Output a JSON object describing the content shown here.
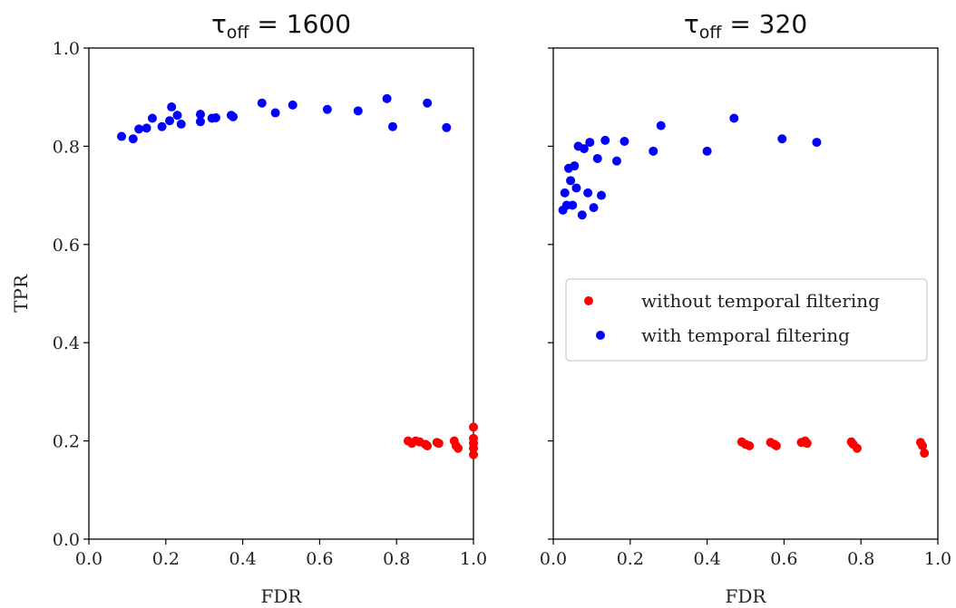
{
  "chart_data": [
    {
      "type": "scatter",
      "title": {
        "symbol": "τ",
        "subscript": "off",
        "suffix": " = 1600"
      },
      "xlabel": "FDR",
      "ylabel": "TPR",
      "xlim": [
        0.0,
        1.0
      ],
      "ylim": [
        0.0,
        1.0
      ],
      "xticks": [
        "0.0",
        "0.2",
        "0.4",
        "0.6",
        "0.8",
        "1.0"
      ],
      "yticks": [
        "0.0",
        "0.2",
        "0.4",
        "0.6",
        "0.8",
        "1.0"
      ],
      "series": [
        {
          "name": "with temporal filtering",
          "color": "#0000ff",
          "points": [
            [
              0.085,
              0.82
            ],
            [
              0.115,
              0.815
            ],
            [
              0.13,
              0.835
            ],
            [
              0.15,
              0.837
            ],
            [
              0.165,
              0.857
            ],
            [
              0.19,
              0.84
            ],
            [
              0.21,
              0.852
            ],
            [
              0.215,
              0.88
            ],
            [
              0.23,
              0.863
            ],
            [
              0.24,
              0.845
            ],
            [
              0.29,
              0.865
            ],
            [
              0.29,
              0.85
            ],
            [
              0.32,
              0.857
            ],
            [
              0.33,
              0.858
            ],
            [
              0.37,
              0.863
            ],
            [
              0.375,
              0.86
            ],
            [
              0.45,
              0.888
            ],
            [
              0.485,
              0.868
            ],
            [
              0.53,
              0.884
            ],
            [
              0.62,
              0.875
            ],
            [
              0.7,
              0.872
            ],
            [
              0.775,
              0.897
            ],
            [
              0.79,
              0.84
            ],
            [
              0.88,
              0.888
            ],
            [
              0.93,
              0.838
            ]
          ]
        },
        {
          "name": "without temporal filtering",
          "color": "#ff0000",
          "points": [
            [
              0.83,
              0.2
            ],
            [
              0.84,
              0.195
            ],
            [
              0.85,
              0.2
            ],
            [
              0.86,
              0.198
            ],
            [
              0.875,
              0.193
            ],
            [
              0.88,
              0.19
            ],
            [
              0.905,
              0.197
            ],
            [
              0.91,
              0.195
            ],
            [
              0.95,
              0.2
            ],
            [
              0.955,
              0.19
            ],
            [
              0.96,
              0.185
            ],
            [
              1.0,
              0.228
            ],
            [
              1.0,
              0.205
            ],
            [
              1.0,
              0.195
            ],
            [
              1.0,
              0.185
            ],
            [
              1.0,
              0.172
            ]
          ]
        }
      ]
    },
    {
      "type": "scatter",
      "title": {
        "symbol": "τ",
        "subscript": "off",
        "suffix": " = 320"
      },
      "xlabel": "FDR",
      "ylabel": "",
      "xlim": [
        0.0,
        1.0
      ],
      "ylim": [
        0.0,
        1.0
      ],
      "xticks": [
        "0.0",
        "0.2",
        "0.4",
        "0.6",
        "0.8",
        "1.0"
      ],
      "yticks": [],
      "legend": {
        "placement": "center-right",
        "entries": [
          {
            "label": "without temporal filtering",
            "color": "#ff0000"
          },
          {
            "label": "with temporal filtering",
            "color": "#0000ff"
          }
        ]
      },
      "series": [
        {
          "name": "with temporal filtering",
          "color": "#0000ff",
          "points": [
            [
              0.025,
              0.67
            ],
            [
              0.03,
              0.705
            ],
            [
              0.035,
              0.68
            ],
            [
              0.04,
              0.755
            ],
            [
              0.045,
              0.73
            ],
            [
              0.05,
              0.68
            ],
            [
              0.055,
              0.76
            ],
            [
              0.06,
              0.715
            ],
            [
              0.065,
              0.8
            ],
            [
              0.075,
              0.66
            ],
            [
              0.08,
              0.795
            ],
            [
              0.09,
              0.705
            ],
            [
              0.095,
              0.808
            ],
            [
              0.105,
              0.675
            ],
            [
              0.115,
              0.775
            ],
            [
              0.125,
              0.7
            ],
            [
              0.135,
              0.812
            ],
            [
              0.165,
              0.77
            ],
            [
              0.185,
              0.81
            ],
            [
              0.26,
              0.79
            ],
            [
              0.28,
              0.842
            ],
            [
              0.4,
              0.79
            ],
            [
              0.47,
              0.857
            ],
            [
              0.595,
              0.815
            ],
            [
              0.685,
              0.808
            ]
          ]
        },
        {
          "name": "without temporal filtering",
          "color": "#ff0000",
          "points": [
            [
              0.49,
              0.198
            ],
            [
              0.5,
              0.193
            ],
            [
              0.51,
              0.19
            ],
            [
              0.565,
              0.197
            ],
            [
              0.575,
              0.193
            ],
            [
              0.58,
              0.19
            ],
            [
              0.645,
              0.197
            ],
            [
              0.655,
              0.2
            ],
            [
              0.66,
              0.195
            ],
            [
              0.775,
              0.198
            ],
            [
              0.78,
              0.193
            ],
            [
              0.79,
              0.185
            ],
            [
              0.955,
              0.197
            ],
            [
              0.96,
              0.19
            ],
            [
              0.965,
              0.175
            ]
          ]
        }
      ]
    }
  ]
}
